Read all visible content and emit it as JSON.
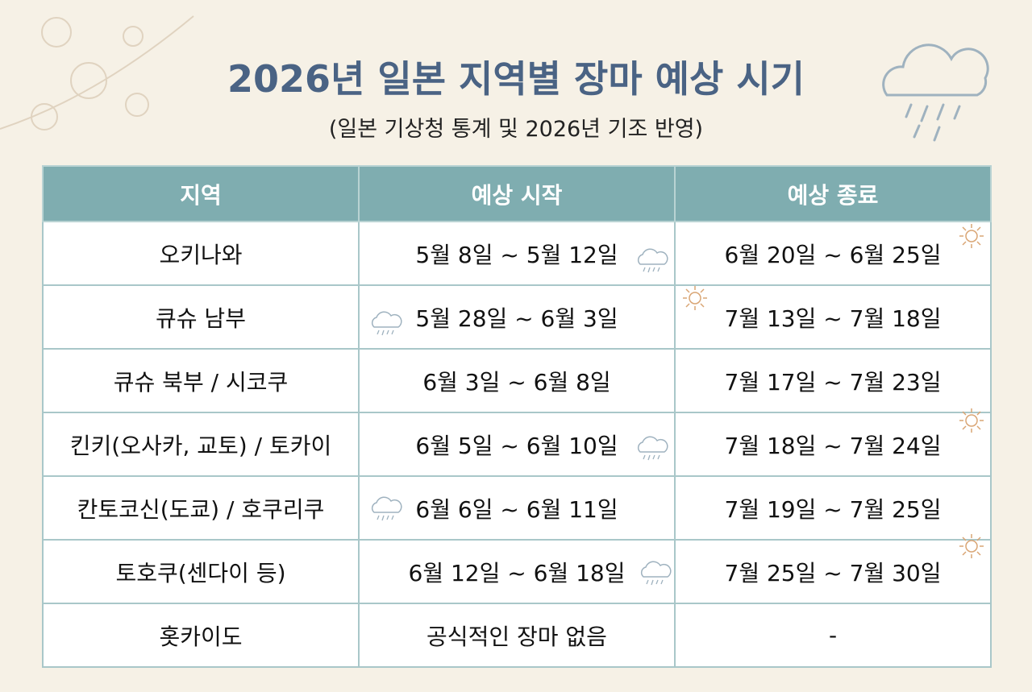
{
  "header": {
    "title": "2026년 일본 지역별 장마 예상 시기",
    "subtitle": "(일본 기상청 통계 및 2026년 기조 반영)"
  },
  "table": {
    "columns": [
      "지역",
      "예상 시작",
      "예상 종료"
    ],
    "rows": [
      [
        "오키나와",
        "5월 8일 ~ 5월 12일",
        "6월 20일 ~ 6월 25일"
      ],
      [
        "큐슈 남부",
        "5월 28일 ~ 6월 3일",
        "7월 13일 ~ 7월 18일"
      ],
      [
        "큐슈 북부 / 시코쿠",
        "6월 3일 ~ 6월 8일",
        "7월 17일 ~ 7월 23일"
      ],
      [
        "킨키(오사카, 교토) / 토카이",
        "6월 5일 ~ 6월 10일",
        "7월 18일 ~ 7월 24일"
      ],
      [
        "칸토코신(도쿄) / 호쿠리쿠",
        "6월 6일 ~ 6월 11일",
        "7월 19일 ~ 7월 25일"
      ],
      [
        "토호쿠(센다이 등)",
        "6월 12일 ~ 6월 18일",
        "7월 25일 ~ 7월 30일"
      ],
      [
        "홋카이도",
        "공식적인 장마 없음",
        "-"
      ]
    ]
  }
}
